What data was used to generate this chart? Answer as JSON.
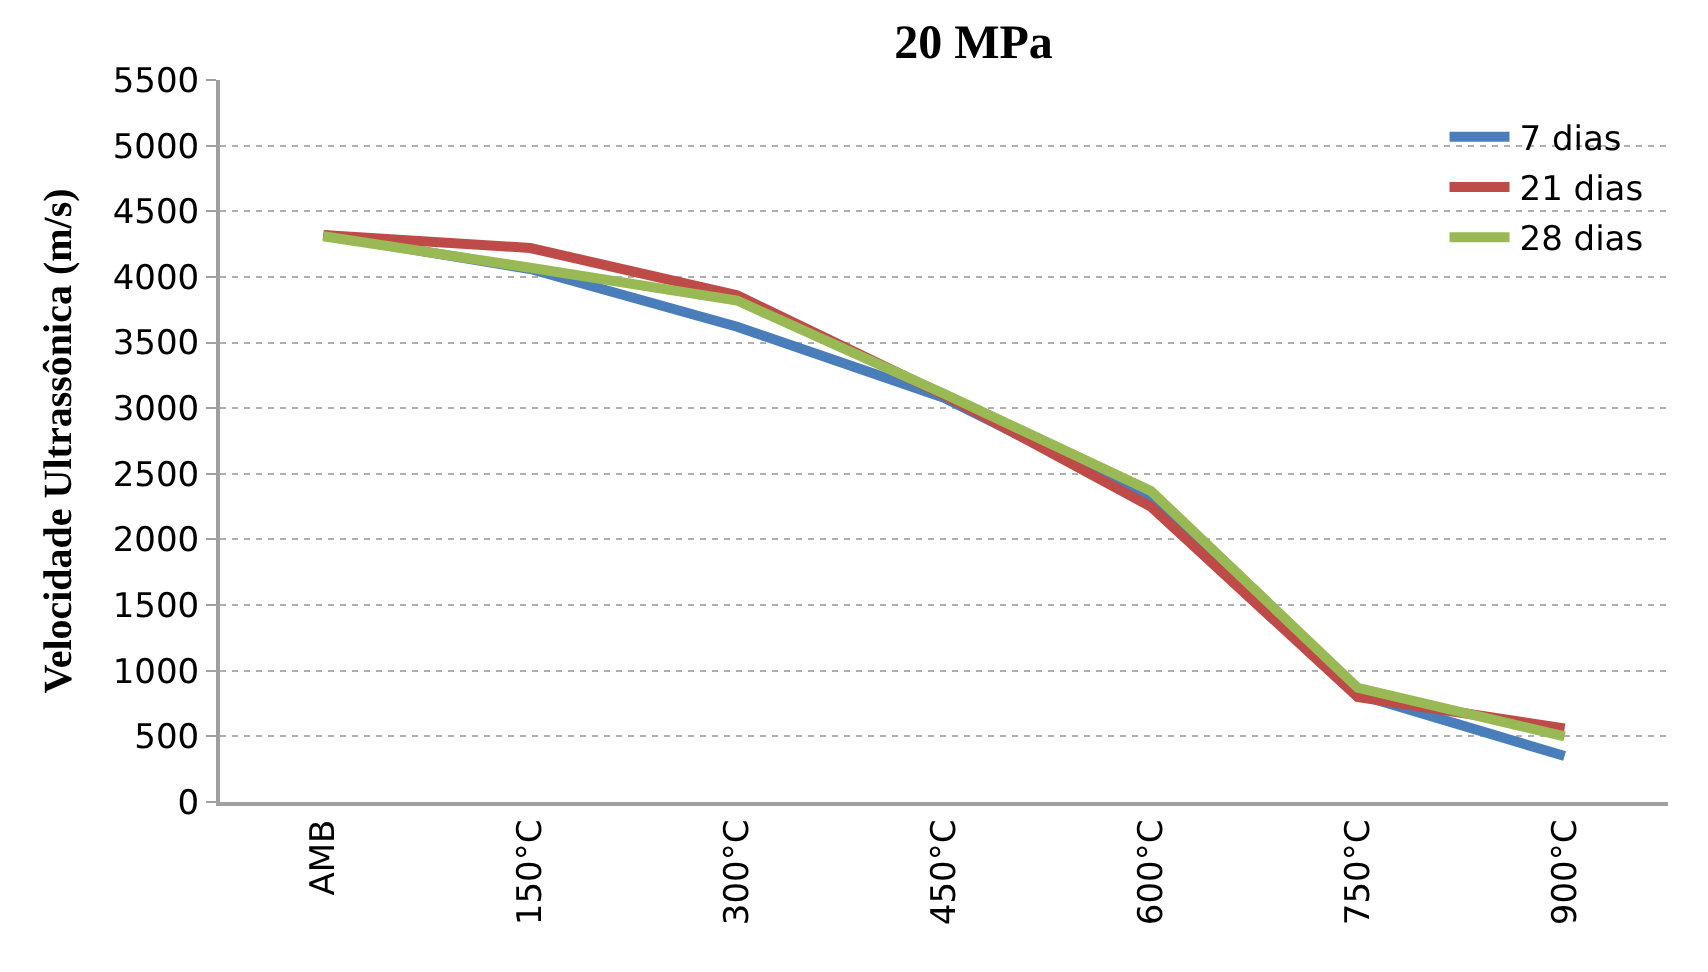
{
  "chart_data": {
    "type": "line",
    "title": "20 MPa",
    "ylabel": "Velocidade Ultrassônica (m/s)",
    "categories": [
      "AMB",
      "150°C",
      "300°C",
      "450°C",
      "600°C",
      "750°C",
      "900°C"
    ],
    "series": [
      {
        "name": "7 dias",
        "color": "#4a7ebb",
        "values": [
          4320,
          4060,
          3620,
          3080,
          2290,
          820,
          350
        ]
      },
      {
        "name": "21 dias",
        "color": "#be4b48",
        "values": [
          4320,
          4220,
          3860,
          3100,
          2250,
          800,
          560
        ]
      },
      {
        "name": "28 dias",
        "color": "#98b954",
        "values": [
          4310,
          4070,
          3820,
          3110,
          2370,
          870,
          500
        ]
      }
    ],
    "ylim": [
      0,
      5500
    ],
    "yticks": [
      0,
      500,
      1000,
      1500,
      2000,
      2500,
      3000,
      3500,
      4000,
      4500,
      5000,
      5500
    ],
    "grid": "y",
    "legend": "top right",
    "marker": "none",
    "line_style": "solid"
  }
}
